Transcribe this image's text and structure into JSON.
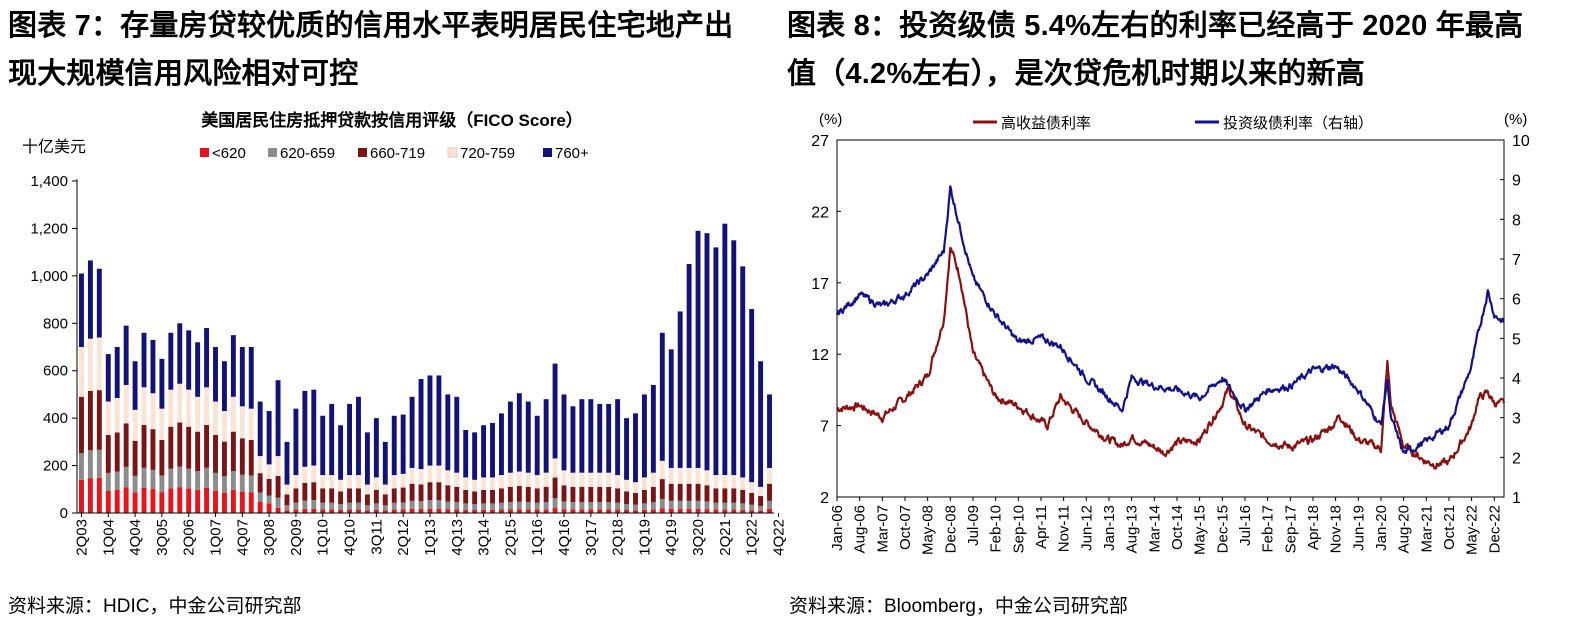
{
  "left": {
    "title_line1": "图表  7：存量房贷较优质的信用水平表明居民住宅地产出",
    "title_line2": "现大规模信用风险相对可控",
    "source": "资料来源：HDIC，中金公司研究部",
    "chart_data": {
      "type": "bar",
      "stacked": true,
      "title": "美国居民住房抵押贷款按信用评级（FICO Score）",
      "ylabel": "十亿美元",
      "ylim": [
        0,
        1400
      ],
      "yticks": [
        "0",
        "200",
        "400",
        "600",
        "800",
        "1,000",
        "1,200",
        "1,400"
      ],
      "x_tick_labels": [
        "2Q03",
        "1Q04",
        "4Q04",
        "3Q05",
        "2Q06",
        "1Q07",
        "4Q07",
        "3Q08",
        "2Q09",
        "1Q10",
        "4Q10",
        "3Q11",
        "2Q12",
        "1Q13",
        "4Q13",
        "3Q14",
        "2Q15",
        "1Q16",
        "4Q16",
        "3Q17",
        "2Q18",
        "1Q19",
        "4Q19",
        "3Q20",
        "2Q21",
        "1Q22",
        "4Q22"
      ],
      "legend_position": "top",
      "series": [
        {
          "name": "<620",
          "color": "#e8131b"
        },
        {
          "name": "620-659",
          "color": "#8c8c8c"
        },
        {
          "name": "660-719",
          "color": "#7b1414"
        },
        {
          "name": "720-759",
          "color": "#fbe3d6"
        },
        {
          "name": "760+",
          "color": "#13127a"
        }
      ],
      "start_quarter": "2Q03",
      "totals": [
        1010,
        1065,
        1030,
        670,
        700,
        790,
        640,
        760,
        730,
        650,
        760,
        800,
        770,
        720,
        780,
        700,
        640,
        750,
        700,
        700,
        470,
        430,
        560,
        300,
        440,
        515,
        520,
        410,
        460,
        370,
        460,
        490,
        340,
        400,
        300,
        410,
        415,
        490,
        565,
        580,
        580,
        500,
        490,
        350,
        340,
        370,
        380,
        420,
        470,
        505,
        470,
        410,
        480,
        630,
        500,
        450,
        480,
        480,
        460,
        460,
        480,
        400,
        420,
        500,
        540,
        760,
        690,
        850,
        1050,
        1190,
        1180,
        1120,
        1220,
        1150,
        1040,
        860,
        640,
        500
      ],
      "top_segment_760plus": [
        310,
        330,
        290,
        200,
        215,
        250,
        205,
        230,
        225,
        210,
        240,
        255,
        250,
        230,
        250,
        230,
        210,
        260,
        250,
        260,
        230,
        225,
        320,
        180,
        280,
        320,
        320,
        250,
        300,
        230,
        300,
        330,
        220,
        250,
        180,
        250,
        250,
        300,
        380,
        380,
        380,
        320,
        320,
        200,
        200,
        220,
        230,
        260,
        300,
        330,
        300,
        250,
        310,
        400,
        320,
        280,
        310,
        310,
        290,
        290,
        320,
        260,
        290,
        350,
        370,
        540,
        500,
        660,
        860,
        1000,
        1000,
        960,
        1060,
        990,
        890,
        730,
        530,
        310
      ]
    }
  },
  "right": {
    "title_line1": "图表 8：投资级债 5.4%左右的利率已经高于 2020 年最高",
    "title_line2": "值（4.2%左右），是次贷危机时期以来的新高",
    "source": "资料来源：Bloomberg，中金公司研究部",
    "chart_data": {
      "type": "line",
      "left_unit": "(%)",
      "right_unit": "(%)",
      "left_ylim": [
        2,
        27
      ],
      "left_yticks": [
        "2",
        "7",
        "12",
        "17",
        "22",
        "27"
      ],
      "right_ylim": [
        1,
        10
      ],
      "right_yticks": [
        "1",
        "2",
        "3",
        "4",
        "5",
        "6",
        "7",
        "8",
        "9",
        "10"
      ],
      "x_tick_labels": [
        "Jan-06",
        "Aug-06",
        "Mar-07",
        "Oct-07",
        "May-08",
        "Dec-08",
        "Jul-09",
        "Feb-10",
        "Sep-10",
        "Apr-11",
        "Nov-11",
        "Jun-12",
        "Jan-13",
        "Aug-13",
        "Mar-14",
        "Oct-14",
        "May-15",
        "Dec-15",
        "Jul-16",
        "Feb-17",
        "Sep-17",
        "Apr-18",
        "Nov-18",
        "Jun-19",
        "Jan-20",
        "Aug-20",
        "Mar-21",
        "Oct-21",
        "May-22",
        "Dec-22"
      ],
      "legend_position": "top",
      "series": [
        {
          "name": "高收益债利率",
          "axis": "left",
          "color": "#8b1010",
          "x": [
            "2006-01",
            "2006-08",
            "2007-03",
            "2007-10",
            "2008-05",
            "2008-10",
            "2008-12",
            "2009-03",
            "2009-07",
            "2010-02",
            "2010-09",
            "2011-04",
            "2011-06",
            "2011-10",
            "2012-06",
            "2013-01",
            "2013-05",
            "2013-08",
            "2014-03",
            "2014-06",
            "2014-10",
            "2015-05",
            "2015-12",
            "2016-02",
            "2016-07",
            "2017-02",
            "2017-09",
            "2018-04",
            "2018-11",
            "2018-12",
            "2019-06",
            "2020-01",
            "2020-03",
            "2020-04",
            "2020-08",
            "2021-03",
            "2021-06",
            "2021-10",
            "2022-05",
            "2022-07",
            "2022-10",
            "2022-12",
            "2023-03"
          ],
          "values": [
            8.2,
            8.4,
            7.6,
            8.9,
            10.5,
            14.5,
            19.5,
            17.5,
            12.0,
            9.0,
            8.4,
            7.3,
            7.0,
            9.0,
            7.2,
            6.0,
            5.6,
            6.2,
            5.5,
            5.1,
            5.8,
            6.0,
            8.6,
            9.6,
            7.0,
            6.0,
            5.5,
            6.0,
            7.2,
            7.8,
            6.0,
            5.4,
            11.4,
            8.5,
            5.6,
            4.5,
            4.3,
            4.4,
            7.0,
            8.9,
            9.3,
            8.6,
            8.5
          ]
        },
        {
          "name": "投资级债利率（右轴）",
          "axis": "right",
          "color": "#12128c",
          "x": [
            "2006-01",
            "2006-08",
            "2007-03",
            "2007-10",
            "2008-05",
            "2008-10",
            "2008-12",
            "2009-03",
            "2009-07",
            "2010-02",
            "2010-09",
            "2011-04",
            "2011-10",
            "2012-06",
            "2013-01",
            "2013-05",
            "2013-08",
            "2014-03",
            "2014-10",
            "2015-05",
            "2015-12",
            "2016-07",
            "2017-02",
            "2017-09",
            "2018-04",
            "2018-11",
            "2019-06",
            "2020-01",
            "2020-03",
            "2020-04",
            "2020-08",
            "2021-03",
            "2021-10",
            "2022-05",
            "2022-07",
            "2022-10",
            "2022-12",
            "2023-03"
          ],
          "values": [
            5.6,
            6.1,
            5.8,
            6.1,
            6.6,
            7.2,
            8.8,
            7.8,
            6.5,
            5.6,
            4.9,
            5.0,
            4.8,
            4.0,
            3.5,
            3.2,
            4.0,
            3.8,
            3.7,
            3.5,
            4.0,
            3.2,
            3.7,
            3.8,
            4.2,
            4.3,
            3.7,
            2.8,
            4.0,
            3.0,
            2.1,
            2.4,
            2.8,
            4.3,
            5.1,
            6.2,
            5.6,
            5.4
          ]
        }
      ]
    }
  }
}
